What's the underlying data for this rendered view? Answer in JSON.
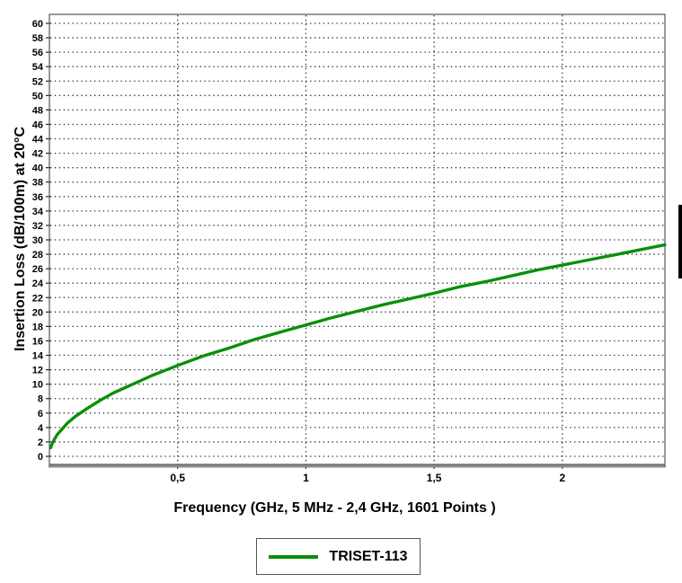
{
  "chart_data": {
    "type": "line",
    "title": "",
    "xlabel": "Frequency (GHz, 5 MHz - 2,4 GHz, 1601 Points )",
    "ylabel": "Insertion Loss (dB/100m) at 20°C",
    "xlim": [
      0,
      2.4
    ],
    "ylim": [
      0,
      60
    ],
    "x_ticks": [
      {
        "value": 0.5,
        "label": "0,5"
      },
      {
        "value": 1,
        "label": "1"
      },
      {
        "value": 1.5,
        "label": "1,5"
      },
      {
        "value": 2,
        "label": "2"
      }
    ],
    "y_ticks": [
      0,
      2,
      4,
      6,
      8,
      10,
      12,
      14,
      16,
      18,
      20,
      22,
      24,
      26,
      28,
      30,
      32,
      34,
      36,
      38,
      40,
      42,
      44,
      46,
      48,
      50,
      52,
      54,
      56,
      58,
      60
    ],
    "grid": "dotted",
    "grid_color": "#2b2b2b",
    "axis_color": "#555555",
    "baseline_color": "#8a8a8a",
    "legend": {
      "position": "bottom-center",
      "entries": [
        {
          "label": "TRISET-113",
          "color": "#0a8f0a"
        }
      ]
    },
    "series": [
      {
        "name": "TRISET-113",
        "color": "#0a8f0a",
        "x": [
          0.005,
          0.01,
          0.02,
          0.03,
          0.05,
          0.07,
          0.1,
          0.15,
          0.2,
          0.25,
          0.3,
          0.35,
          0.4,
          0.45,
          0.5,
          0.6,
          0.7,
          0.8,
          0.9,
          1.0,
          1.1,
          1.2,
          1.3,
          1.4,
          1.5,
          1.6,
          1.7,
          1.8,
          1.9,
          2.0,
          2.1,
          2.2,
          2.3,
          2.4
        ],
        "y": [
          1.2,
          1.7,
          2.4,
          3.0,
          3.8,
          4.6,
          5.5,
          6.7,
          7.8,
          8.8,
          9.6,
          10.4,
          11.2,
          11.9,
          12.6,
          13.9,
          15.0,
          16.2,
          17.2,
          18.2,
          19.2,
          20.1,
          21.0,
          21.8,
          22.6,
          23.5,
          24.2,
          25.0,
          25.8,
          26.5,
          27.2,
          27.9,
          28.6,
          29.3
        ]
      }
    ]
  }
}
